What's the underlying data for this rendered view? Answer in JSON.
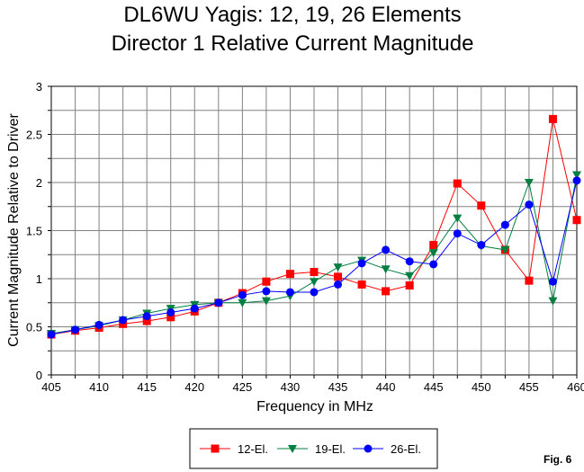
{
  "chart_data": {
    "type": "line",
    "title": [
      "DL6WU Yagis:  12, 19, 26 Elements",
      "Director 1 Relative Current Magnitude"
    ],
    "xlabel": "Frequency in MHz",
    "ylabel": "Current Magnitude Relative to Driver",
    "xlim": [
      405,
      460
    ],
    "ylim": [
      0,
      3
    ],
    "xticks": [
      405,
      410,
      415,
      420,
      425,
      430,
      435,
      440,
      445,
      450,
      455,
      460
    ],
    "yticks": [
      0,
      0.5,
      1,
      1.5,
      2,
      2.5,
      3
    ],
    "ytick_labels": [
      "0",
      "0.5",
      "1",
      "1.5",
      "2",
      "2.5",
      "3"
    ],
    "grid": true,
    "legend_position": "bottom-center",
    "x": [
      405,
      407.5,
      410,
      412.5,
      415,
      417.5,
      420,
      422.5,
      425,
      427.5,
      430,
      432.5,
      435,
      437.5,
      440,
      442.5,
      445,
      447.5,
      450,
      452.5,
      455,
      457.5,
      460
    ],
    "series": [
      {
        "name": "12-El.",
        "color": "#ff0000",
        "marker": "square",
        "values": [
          0.42,
          0.46,
          0.49,
          0.53,
          0.56,
          0.6,
          0.66,
          0.75,
          0.85,
          0.97,
          1.05,
          1.07,
          1.02,
          0.94,
          0.87,
          0.93,
          1.35,
          1.99,
          1.76,
          1.3,
          0.98,
          2.66,
          1.61
        ]
      },
      {
        "name": "19-El.",
        "color": "#008040",
        "marker": "triangle-down",
        "values": [
          0.43,
          0.47,
          0.51,
          0.57,
          0.64,
          0.69,
          0.73,
          0.75,
          0.75,
          0.77,
          0.82,
          0.97,
          1.12,
          1.19,
          1.1,
          1.03,
          1.27,
          1.63,
          1.34,
          1.3,
          2.0,
          0.77,
          2.08
        ]
      },
      {
        "name": "26-El.",
        "color": "#0000ff",
        "marker": "circle",
        "values": [
          0.42,
          0.47,
          0.52,
          0.57,
          0.61,
          0.65,
          0.69,
          0.75,
          0.83,
          0.87,
          0.86,
          0.86,
          0.94,
          1.16,
          1.3,
          1.18,
          1.15,
          1.47,
          1.35,
          1.56,
          1.77,
          0.97,
          2.02
        ]
      }
    ]
  },
  "figure_label": "Fig. 6",
  "colors": {
    "background": "#ffffff",
    "plot_background": "#ffffff",
    "grid": "#808080",
    "axis": "#000000"
  }
}
